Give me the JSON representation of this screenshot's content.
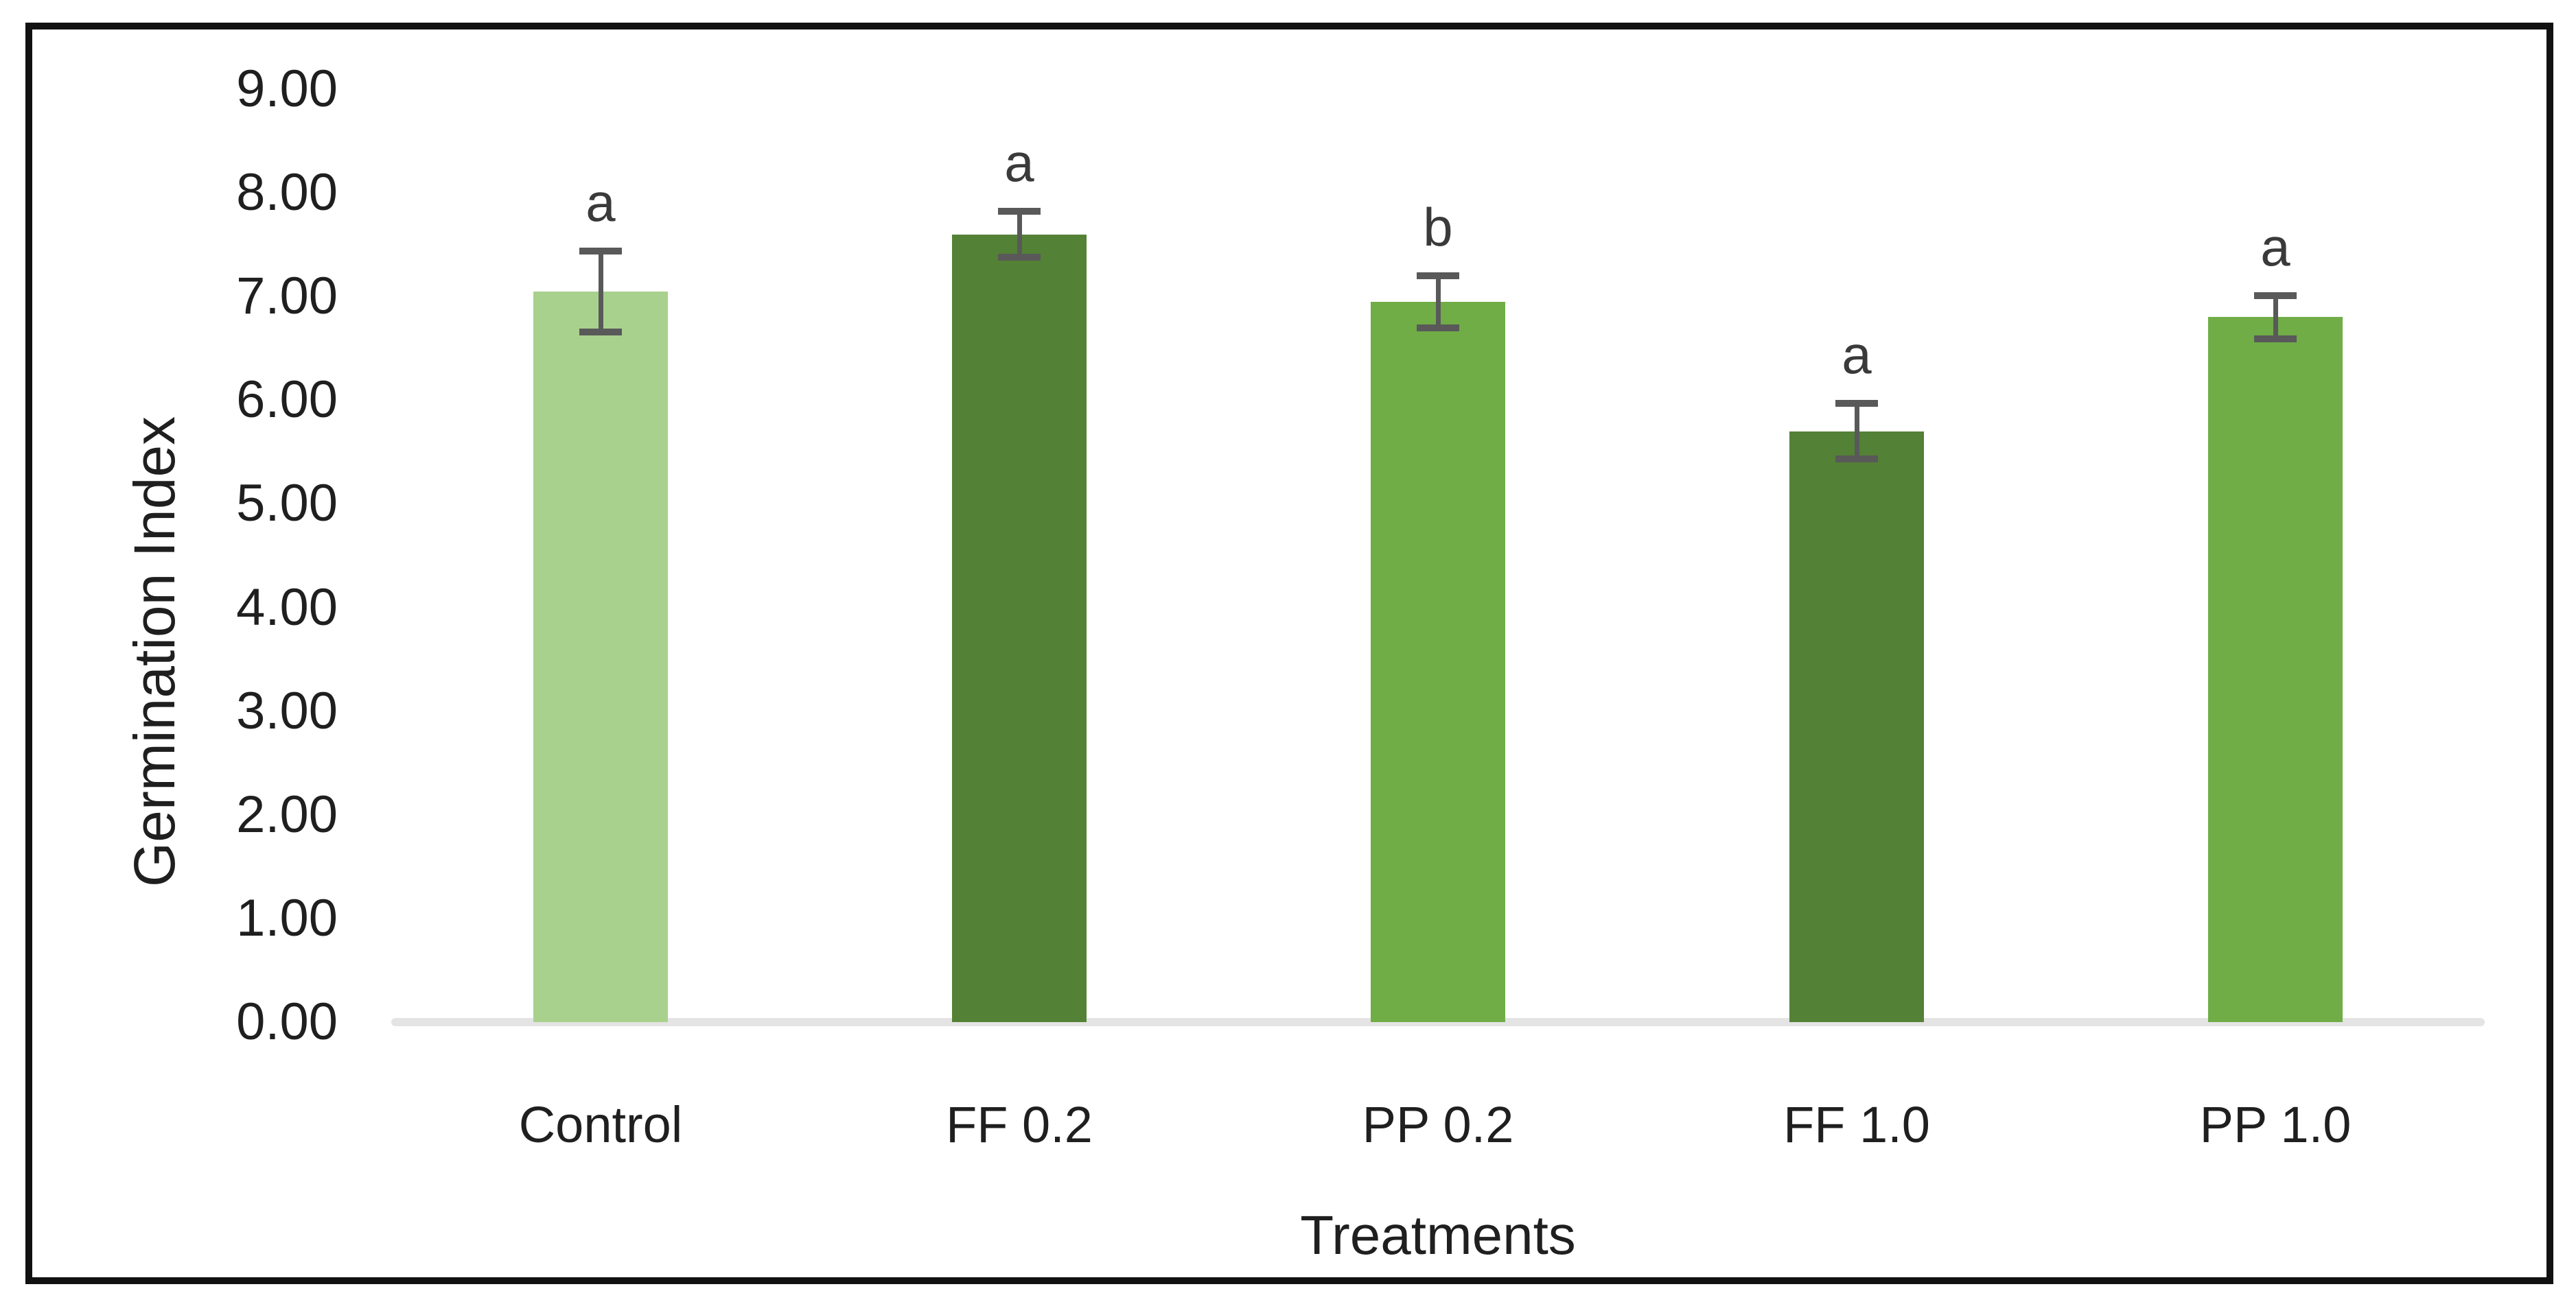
{
  "chart_data": {
    "type": "bar",
    "title": "",
    "categories": [
      "Control",
      "FF 0.2",
      "PP 0.2",
      "FF 1.0",
      "PP 1.0"
    ],
    "values": [
      7.05,
      7.6,
      6.95,
      5.7,
      6.8
    ],
    "error_bars": [
      0.39,
      0.22,
      0.25,
      0.27,
      0.21
    ],
    "significance_letters": [
      "a",
      "a",
      "b",
      "a",
      "a"
    ],
    "bar_colors": [
      "#A9D18E",
      "#538135",
      "#70AD47",
      "#538135",
      "#70AD47"
    ],
    "xlabel": "Treatments",
    "ylabel": "Germination Index",
    "ylim": [
      0,
      9
    ],
    "ytick_step": 1,
    "ytick_labels": [
      "0.00",
      "1.00",
      "2.00",
      "3.00",
      "4.00",
      "5.00",
      "6.00",
      "7.00",
      "8.00",
      "9.00"
    ],
    "grid": false,
    "legend": "none",
    "colors": {
      "error_bar": "#595959",
      "axis_line": "#e4e4e4",
      "text": "#1f1f1f",
      "frame_border": "#111111",
      "background": "#ffffff"
    }
  }
}
